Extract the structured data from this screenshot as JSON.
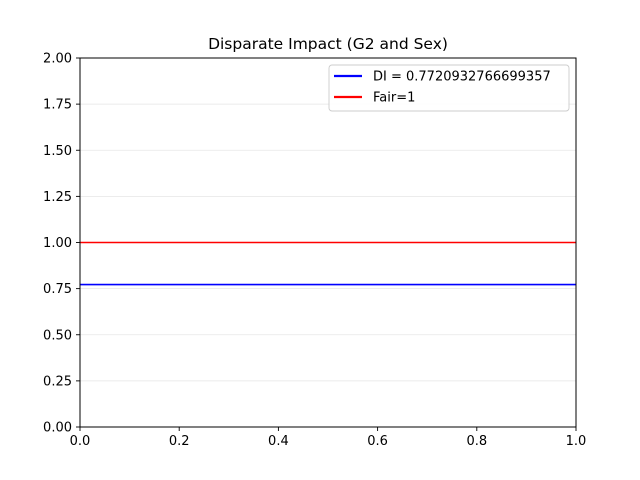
{
  "chart_data": {
    "type": "line",
    "title": "Disparate Impact (G2 and Sex)",
    "xlabel": "",
    "ylabel": "",
    "xlim": [
      0.0,
      1.0
    ],
    "ylim": [
      0.0,
      2.0
    ],
    "x_ticks": [
      0.0,
      0.2,
      0.4,
      0.6,
      0.8,
      1.0
    ],
    "x_tick_labels": [
      "0.0",
      "0.2",
      "0.4",
      "0.6",
      "0.8",
      "1.0"
    ],
    "y_ticks": [
      0.0,
      0.25,
      0.5,
      0.75,
      1.0,
      1.25,
      1.5,
      1.75,
      2.0
    ],
    "y_tick_labels": [
      "0.00",
      "0.25",
      "0.50",
      "0.75",
      "1.00",
      "1.25",
      "1.50",
      "1.75",
      "2.00"
    ],
    "grid": "y-axis, light",
    "legend_position": "top-right",
    "series": [
      {
        "name": "DI = 0.7720932766699357",
        "color": "#0000ff",
        "x": [
          0.0,
          1.0
        ],
        "y": [
          0.7720932766699357,
          0.7720932766699357
        ]
      },
      {
        "name": "Fair=1",
        "color": "#ff0000",
        "x": [
          0.0,
          1.0
        ],
        "y": [
          1.0,
          1.0
        ]
      }
    ]
  }
}
